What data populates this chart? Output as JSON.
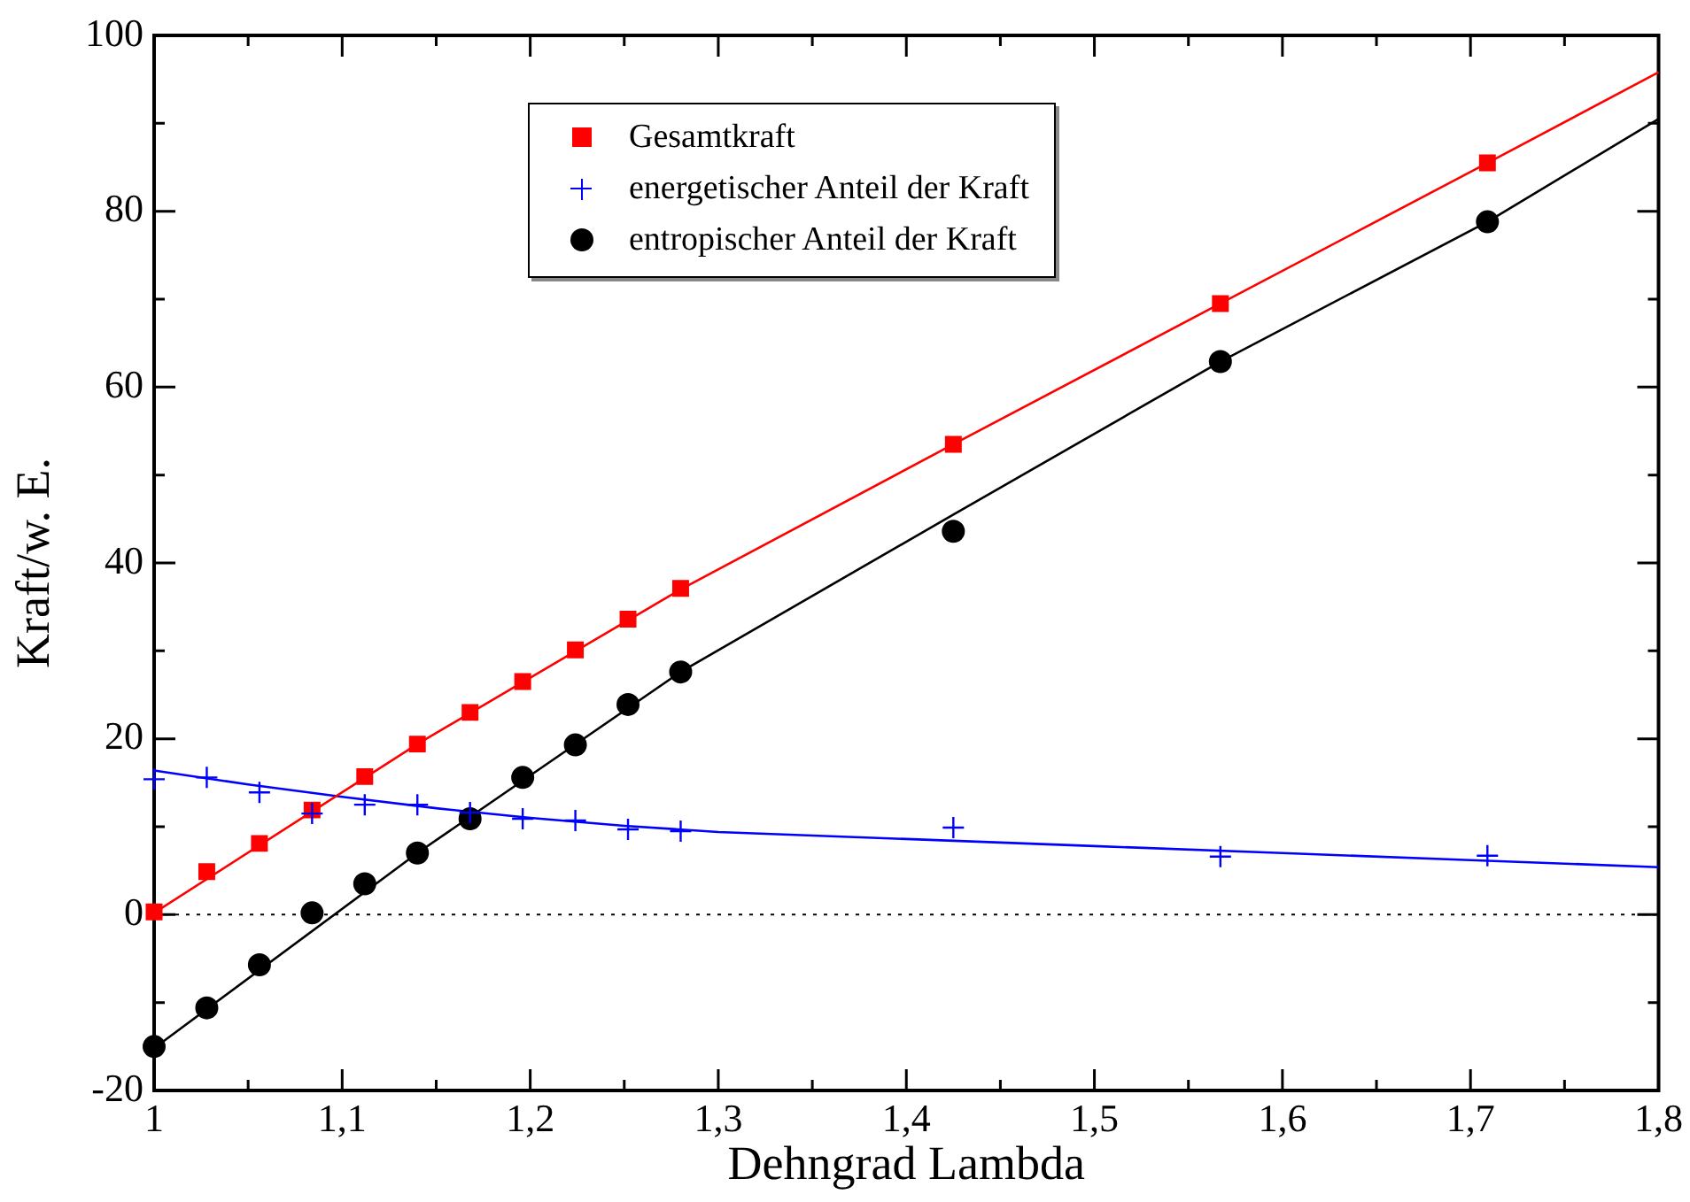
{
  "chart_data": {
    "type": "scatter",
    "xlabel": "Dehngrad Lambda",
    "ylabel": "Kraft/w. E.",
    "xlim": [
      1,
      1.8
    ],
    "ylim": [
      -20,
      100
    ],
    "xticks": [
      1,
      {
        "value": 1.05,
        "label": null
      },
      {
        "value": 1.1,
        "label": "1,1"
      },
      {
        "value": 1.15,
        "label": null
      },
      {
        "value": 1.2,
        "label": "1,2"
      },
      {
        "value": 1.25,
        "label": null
      },
      {
        "value": 1.3,
        "label": "1,3"
      },
      {
        "value": 1.35,
        "label": null
      },
      {
        "value": 1.4,
        "label": "1,4"
      },
      {
        "value": 1.45,
        "label": null
      },
      {
        "value": 1.5,
        "label": "1,5"
      },
      {
        "value": 1.55,
        "label": null
      },
      {
        "value": 1.6,
        "label": "1,6"
      },
      {
        "value": 1.65,
        "label": null
      },
      {
        "value": 1.7,
        "label": "1,7"
      },
      {
        "value": 1.75,
        "label": null
      },
      {
        "value": 1.8,
        "label": "1,8"
      }
    ],
    "yticks": [
      -20,
      {
        "value": -10,
        "label": null
      },
      0,
      {
        "value": 10,
        "label": null
      },
      20,
      {
        "value": 30,
        "label": null
      },
      40,
      {
        "value": 50,
        "label": null
      },
      60,
      {
        "value": 70,
        "label": null
      },
      80,
      {
        "value": 90,
        "label": null
      },
      100
    ],
    "legend": "top",
    "grid": false,
    "x": [
      1.0,
      1.028,
      1.056,
      1.084,
      1.112,
      1.14,
      1.168,
      1.196,
      1.224,
      1.252,
      1.28,
      1.425,
      1.567,
      1.709
    ],
    "series": [
      {
        "name": "Gesamtkraft",
        "type": "scatter",
        "marker": "square",
        "color": "#ff0000",
        "values": [
          0.3,
          4.9,
          8.1,
          11.9,
          15.7,
          19.4,
          23.0,
          26.5,
          30.1,
          33.6,
          37.1,
          53.5,
          69.5,
          85.5
        ]
      },
      {
        "name": "energetischer Anteil der Kraft",
        "type": "scatter",
        "marker": "cross",
        "color": "#0000ff",
        "values": [
          15.4,
          15.6,
          13.9,
          11.5,
          12.5,
          12.5,
          11.6,
          10.9,
          10.7,
          9.7,
          9.5,
          9.9,
          6.6,
          6.7
        ]
      },
      {
        "name": "entropischer Anteil der Kraft",
        "type": "scatter",
        "marker": "circle",
        "color": "#000000",
        "values": [
          -15.0,
          -10.6,
          -5.7,
          0.2,
          3.5,
          7.0,
          10.9,
          15.6,
          19.3,
          23.9,
          27.6,
          43.6,
          62.9,
          78.8
        ]
      },
      {
        "type": "line",
        "marker": "none",
        "color": "#ff0000",
        "x": [
          1.0,
          1.14,
          1.28,
          1.425,
          1.567,
          1.709,
          1.8
        ],
        "values": [
          0.2,
          19.4,
          37.0,
          53.5,
          69.5,
          85.5,
          95.8
        ]
      },
      {
        "type": "line",
        "marker": "none",
        "color": "#0000ff",
        "x": [
          1.0,
          1.05,
          1.1,
          1.15,
          1.2,
          1.25,
          1.3,
          1.4,
          1.5,
          1.6,
          1.7,
          1.8
        ],
        "values": [
          16.4,
          14.8,
          13.4,
          12.1,
          11.0,
          10.1,
          9.4,
          8.6,
          7.8,
          7.0,
          6.2,
          5.4
        ]
      },
      {
        "type": "line",
        "marker": "none",
        "color": "#000000",
        "x": [
          1.0,
          1.14,
          1.28,
          1.425,
          1.567,
          1.709,
          1.8
        ],
        "values": [
          -15.2,
          7.0,
          27.6,
          45.5,
          62.9,
          78.8,
          90.5
        ]
      }
    ],
    "ref_lines": [
      {
        "axis": "y",
        "value": 0,
        "color": "#000000",
        "line_style": "dotted"
      }
    ]
  }
}
